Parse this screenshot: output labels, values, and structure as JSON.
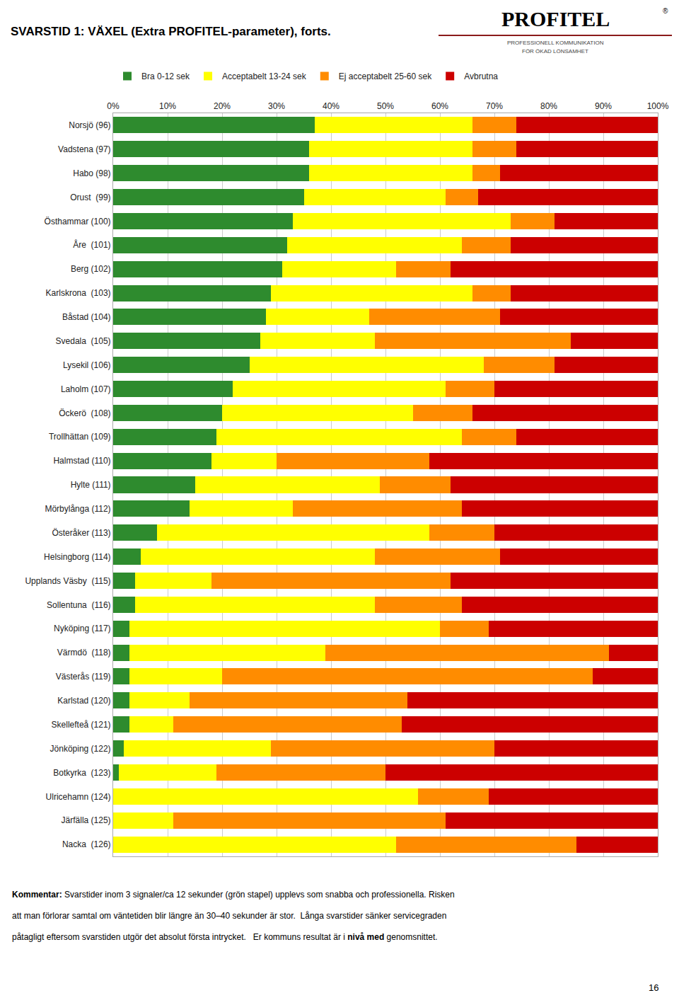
{
  "chart_data": {
    "type": "bar",
    "orientation": "horizontal",
    "stacked": true,
    "title": "SVARSTID 1: VÄXEL (Extra PROFITEL-parameter), forts.",
    "categories": [
      "Norsjö (96)",
      "Vadstena (97)",
      "Habo (98)",
      "Orust  (99)",
      "Östhammar (100)",
      "Åre  (101)",
      "Berg (102)",
      "Karlskrona  (103)",
      "Båstad (104)",
      "Svedala  (105)",
      "Lysekil (106)",
      "Laholm (107)",
      "Öckerö  (108)",
      "Trollhättan (109)",
      "Halmstad (110)",
      "Hylte (111)",
      "Mörbylånga (112)",
      "Österåker (113)",
      "Helsingborg (114)",
      "Upplands Väsby  (115)",
      "Sollentuna  (116)",
      "Nyköping (117)",
      "Värmdö  (118)",
      "Västerås (119)",
      "Karlstad (120)",
      "Skellefteå (121)",
      "Jönköping (122)",
      "Botkyrka  (123)",
      "Ulricehamn (124)",
      "Järfälla (125)",
      "Nacka  (126)"
    ],
    "series": [
      {
        "name": "Bra 0-12 sek",
        "color": "#2e8b2e",
        "values": [
          37,
          36,
          36,
          35,
          33,
          32,
          31,
          29,
          28,
          27,
          25,
          22,
          20,
          19,
          18,
          15,
          14,
          8,
          5,
          4,
          4,
          3,
          3,
          3,
          3,
          3,
          2,
          1,
          0,
          0,
          0
        ]
      },
      {
        "name": "Acceptabelt 13-24 sek",
        "color": "#ffff00",
        "values": [
          29,
          30,
          30,
          26,
          40,
          32,
          21,
          37,
          19,
          21,
          43,
          39,
          35,
          45,
          12,
          34,
          19,
          50,
          43,
          14,
          44,
          57,
          36,
          17,
          11,
          8,
          27,
          18,
          56,
          11,
          52
        ]
      },
      {
        "name": "Ej acceptabelt 25-60 sek",
        "color": "#ff8c00",
        "values": [
          8,
          8,
          5,
          6,
          8,
          9,
          10,
          7,
          24,
          36,
          13,
          9,
          11,
          10,
          28,
          13,
          31,
          12,
          23,
          44,
          16,
          9,
          52,
          68,
          40,
          42,
          41,
          31,
          13,
          50,
          33
        ]
      },
      {
        "name": "Avbrutna",
        "color": "#cc0000",
        "values": [
          26,
          26,
          29,
          33,
          19,
          27,
          38,
          27,
          29,
          16,
          19,
          30,
          34,
          26,
          42,
          38,
          36,
          30,
          29,
          38,
          36,
          31,
          9,
          12,
          46,
          47,
          30,
          50,
          31,
          39,
          15
        ]
      }
    ],
    "xlim": [
      0,
      100
    ],
    "xticks": [
      {
        "value": 0,
        "label": "0%"
      },
      {
        "value": 10,
        "label": "10%"
      },
      {
        "value": 20,
        "label": "20%"
      },
      {
        "value": 30,
        "label": "30%"
      },
      {
        "value": 40,
        "label": "40%"
      },
      {
        "value": 50,
        "label": "50%"
      },
      {
        "value": 60,
        "label": "60%"
      },
      {
        "value": 70,
        "label": "70%"
      },
      {
        "value": 80,
        "label": "80%"
      },
      {
        "value": 90,
        "label": "90%"
      },
      {
        "value": 100,
        "label": "100%"
      }
    ],
    "grid": true,
    "legend": "top",
    "annotations": [
      "16",
      "PROFITEL",
      "®",
      "PROFESSIONELL KOMMUNIKATION",
      "FÖR ÖKAD LÖNSAMHET",
      "Kommentar:",
      "Svarstider inom 3 signaler/ca 12 sekunder (grön stapel) upplevs som snabba och professionella. Risken",
      "att man förlorar samtal om väntetiden blir längre än 30–40 sekunder är stor.  Långa svarstider sänker servicegraden",
      "påtagligt eftersom svarstiden utgör det absolut första intrycket.   Er kommuns resultat är i ",
      "nivå med",
      " genomsnittet."
    ]
  }
}
